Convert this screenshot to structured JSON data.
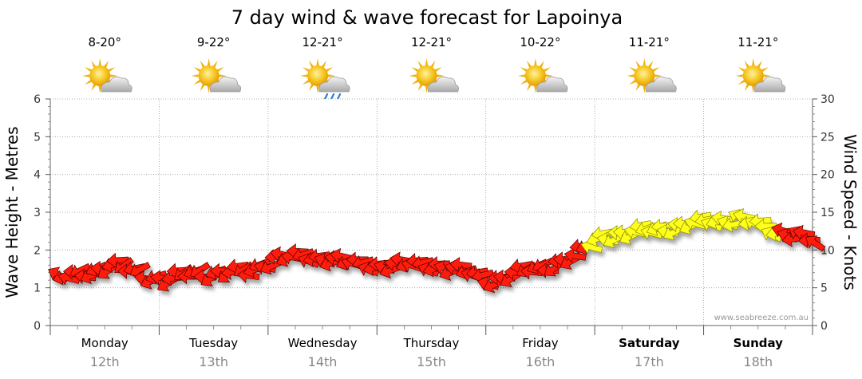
{
  "chart_data": {
    "type": "line",
    "title": "7 day wind & wave forecast for Lapoinya",
    "y_left_label": "Wave Height - Metres",
    "y_right_label": "Wind Speed - Knots",
    "y_left_range": [
      0,
      6
    ],
    "y_left_ticks": [
      "0",
      "1",
      "2",
      "3",
      "4",
      "5",
      "6"
    ],
    "y_right_range": [
      0,
      30
    ],
    "y_right_ticks": [
      "0",
      "5",
      "10",
      "15",
      "20",
      "25",
      "30"
    ],
    "grid": true,
    "watermark": "www.seabreeze.com.au",
    "days": [
      {
        "day": "Monday",
        "date": "12th",
        "temp": "8-20°",
        "weather": "partly-cloudy",
        "bold": false
      },
      {
        "day": "Tuesday",
        "date": "13th",
        "temp": "9-22°",
        "weather": "partly-cloudy",
        "bold": false
      },
      {
        "day": "Wednesday",
        "date": "14th",
        "temp": "12-21°",
        "weather": "showers",
        "bold": false
      },
      {
        "day": "Thursday",
        "date": "15th",
        "temp": "12-21°",
        "weather": "partly-cloudy",
        "bold": false
      },
      {
        "day": "Friday",
        "date": "16th",
        "temp": "10-22°",
        "weather": "partly-cloudy",
        "bold": false
      },
      {
        "day": "Saturday",
        "date": "17th",
        "temp": "11-21°",
        "weather": "partly-cloudy",
        "bold": true
      },
      {
        "day": "Sunday",
        "date": "18th",
        "temp": "11-21°",
        "weather": "partly-cloudy",
        "bold": true
      }
    ],
    "series": [
      {
        "name": "Wave Height (m)",
        "x_days": [
          0.0,
          0.25,
          0.5,
          0.75,
          1.0,
          1.25,
          1.5,
          1.75,
          2.0,
          2.25,
          2.5,
          2.75,
          3.0,
          3.25,
          3.5,
          3.75,
          4.0,
          4.25,
          4.5,
          4.75,
          5.0,
          5.25,
          5.5,
          5.75,
          6.0,
          6.25,
          6.5,
          6.75,
          6.95
        ],
        "values": [
          1.1,
          1.3,
          1.4,
          1.3,
          1.2,
          1.3,
          1.4,
          1.3,
          1.8,
          1.8,
          1.8,
          1.7,
          1.6,
          1.6,
          1.6,
          1.5,
          1.3,
          1.4,
          1.6,
          1.8,
          2.4,
          2.3,
          2.5,
          2.6,
          2.8,
          2.7,
          2.6,
          2.3,
          2.2
        ]
      },
      {
        "name": "Wind Speed (knots)",
        "x_days": [
          0.0,
          0.25,
          0.5,
          0.75,
          1.0,
          1.25,
          1.5,
          1.75,
          2.0,
          2.25,
          2.5,
          2.75,
          3.0,
          3.25,
          3.5,
          3.75,
          4.0,
          4.25,
          4.5,
          4.75,
          5.0,
          5.25,
          5.5,
          5.75,
          6.0,
          6.25,
          6.5,
          6.75,
          6.95
        ],
        "values": [
          6,
          7,
          8,
          7,
          6,
          7,
          7,
          7,
          9,
          9,
          9,
          8,
          8,
          8,
          8,
          7,
          6,
          7,
          8,
          9,
          12,
          12,
          13,
          13,
          14,
          14,
          13,
          12,
          11
        ],
        "direction_deg": [
          110,
          70,
          60,
          70,
          70,
          60,
          60,
          70,
          80,
          90,
          90,
          90,
          90,
          90,
          90,
          90,
          80,
          70,
          60,
          80,
          80,
          80,
          80,
          80,
          90,
          110,
          100,
          110,
          110
        ]
      }
    ]
  }
}
